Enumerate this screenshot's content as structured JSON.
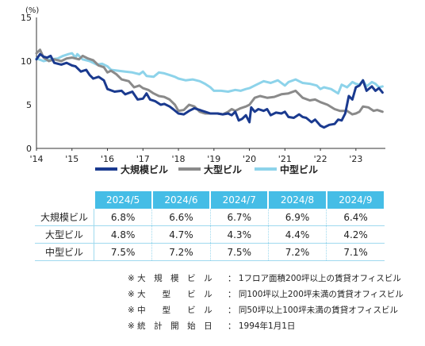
{
  "chart_data": {
    "type": "line",
    "unit": "(%)",
    "ylim": [
      0,
      15
    ],
    "yticks": [
      0,
      5,
      10,
      15
    ],
    "x_tick_labels": [
      "'14",
      "'15",
      "'16",
      "'17",
      "'18",
      "'19",
      "'20",
      "'21",
      "'22",
      "'23"
    ],
    "x_range": [
      2014.0,
      2023.83
    ],
    "grid": false,
    "legend_position": "bottom",
    "series": [
      {
        "name": "大規模ビル",
        "color": "#1a3a8f",
        "points": [
          [
            2014.0,
            10.2
          ],
          [
            2014.1,
            10.8
          ],
          [
            2014.2,
            10.5
          ],
          [
            2014.3,
            10.4
          ],
          [
            2014.4,
            10.6
          ],
          [
            2014.5,
            9.8
          ],
          [
            2014.7,
            9.6
          ],
          [
            2014.85,
            9.8
          ],
          [
            2015.0,
            9.5
          ],
          [
            2015.1,
            9.4
          ],
          [
            2015.25,
            8.8
          ],
          [
            2015.4,
            9.0
          ],
          [
            2015.5,
            8.4
          ],
          [
            2015.6,
            8.0
          ],
          [
            2015.75,
            8.2
          ],
          [
            2015.9,
            7.8
          ],
          [
            2016.0,
            6.8
          ],
          [
            2016.2,
            6.5
          ],
          [
            2016.4,
            6.6
          ],
          [
            2016.5,
            6.2
          ],
          [
            2016.7,
            6.5
          ],
          [
            2016.85,
            5.6
          ],
          [
            2017.0,
            5.7
          ],
          [
            2017.1,
            6.3
          ],
          [
            2017.2,
            5.6
          ],
          [
            2017.35,
            5.4
          ],
          [
            2017.5,
            5.0
          ],
          [
            2017.6,
            5.1
          ],
          [
            2017.75,
            4.8
          ],
          [
            2017.85,
            4.5
          ],
          [
            2018.0,
            4.0
          ],
          [
            2018.15,
            3.9
          ],
          [
            2018.3,
            4.3
          ],
          [
            2018.45,
            4.6
          ],
          [
            2018.6,
            4.4
          ],
          [
            2018.75,
            4.2
          ],
          [
            2018.9,
            4.0
          ],
          [
            2019.1,
            4.0
          ],
          [
            2019.25,
            3.9
          ],
          [
            2019.4,
            4.0
          ],
          [
            2019.5,
            3.8
          ],
          [
            2019.6,
            4.2
          ],
          [
            2019.7,
            3.2
          ],
          [
            2019.8,
            3.4
          ],
          [
            2019.9,
            3.8
          ],
          [
            2020.0,
            3.0
          ],
          [
            2020.05,
            4.7
          ],
          [
            2020.15,
            4.2
          ],
          [
            2020.25,
            4.5
          ],
          [
            2020.4,
            4.3
          ],
          [
            2020.5,
            4.5
          ],
          [
            2020.6,
            3.8
          ],
          [
            2020.75,
            4.1
          ],
          [
            2020.9,
            4.0
          ],
          [
            2021.0,
            4.2
          ],
          [
            2021.1,
            3.6
          ],
          [
            2021.25,
            3.5
          ],
          [
            2021.4,
            3.9
          ],
          [
            2021.5,
            3.6
          ],
          [
            2021.6,
            3.5
          ],
          [
            2021.75,
            3.0
          ],
          [
            2021.85,
            3.3
          ],
          [
            2022.0,
            2.6
          ],
          [
            2022.1,
            2.4
          ],
          [
            2022.25,
            2.7
          ],
          [
            2022.4,
            2.8
          ],
          [
            2022.5,
            3.3
          ],
          [
            2022.6,
            3.2
          ],
          [
            2022.7,
            4.0
          ],
          [
            2022.8,
            6.0
          ],
          [
            2022.9,
            5.6
          ],
          [
            2023.0,
            7.0
          ],
          [
            2023.1,
            7.2
          ],
          [
            2023.2,
            7.8
          ],
          [
            2023.3,
            6.6
          ],
          [
            2023.45,
            7.1
          ],
          [
            2023.55,
            6.6
          ],
          [
            2023.65,
            6.9
          ],
          [
            2023.75,
            6.4
          ]
        ]
      },
      {
        "name": "大型ビル",
        "color": "#8a8a8a",
        "points": [
          [
            2014.0,
            10.9
          ],
          [
            2014.1,
            11.3
          ],
          [
            2014.2,
            10.4
          ],
          [
            2014.35,
            10.0
          ],
          [
            2014.5,
            10.2
          ],
          [
            2014.7,
            10.0
          ],
          [
            2014.85,
            10.3
          ],
          [
            2015.0,
            10.4
          ],
          [
            2015.2,
            10.2
          ],
          [
            2015.3,
            10.6
          ],
          [
            2015.45,
            10.3
          ],
          [
            2015.6,
            10.1
          ],
          [
            2015.75,
            9.5
          ],
          [
            2015.9,
            9.3
          ],
          [
            2016.0,
            8.7
          ],
          [
            2016.1,
            8.9
          ],
          [
            2016.25,
            8.5
          ],
          [
            2016.4,
            7.9
          ],
          [
            2016.6,
            7.7
          ],
          [
            2016.75,
            7.0
          ],
          [
            2016.9,
            7.2
          ],
          [
            2017.0,
            6.9
          ],
          [
            2017.15,
            6.7
          ],
          [
            2017.3,
            6.3
          ],
          [
            2017.45,
            6.0
          ],
          [
            2017.6,
            5.9
          ],
          [
            2017.75,
            5.6
          ],
          [
            2017.9,
            5.0
          ],
          [
            2018.0,
            4.3
          ],
          [
            2018.15,
            4.4
          ],
          [
            2018.3,
            5.0
          ],
          [
            2018.45,
            4.8
          ],
          [
            2018.6,
            4.2
          ],
          [
            2018.75,
            4.0
          ],
          [
            2018.9,
            4.0
          ],
          [
            2019.1,
            4.0
          ],
          [
            2019.25,
            3.9
          ],
          [
            2019.4,
            4.2
          ],
          [
            2019.5,
            4.5
          ],
          [
            2019.6,
            4.3
          ],
          [
            2019.75,
            4.6
          ],
          [
            2019.9,
            4.8
          ],
          [
            2020.0,
            5.0
          ],
          [
            2020.15,
            5.8
          ],
          [
            2020.3,
            6.0
          ],
          [
            2020.5,
            5.8
          ],
          [
            2020.7,
            5.9
          ],
          [
            2020.9,
            6.2
          ],
          [
            2021.1,
            6.3
          ],
          [
            2021.3,
            6.6
          ],
          [
            2021.5,
            5.8
          ],
          [
            2021.7,
            5.5
          ],
          [
            2021.85,
            5.6
          ],
          [
            2022.0,
            5.3
          ],
          [
            2022.2,
            5.0
          ],
          [
            2022.4,
            4.5
          ],
          [
            2022.55,
            4.3
          ],
          [
            2022.75,
            4.3
          ],
          [
            2022.9,
            3.9
          ],
          [
            2023.0,
            4.0
          ],
          [
            2023.1,
            4.2
          ],
          [
            2023.2,
            4.8
          ],
          [
            2023.35,
            4.7
          ],
          [
            2023.5,
            4.3
          ],
          [
            2023.6,
            4.4
          ],
          [
            2023.75,
            4.2
          ]
        ]
      },
      {
        "name": "中型ビル",
        "color": "#8dd3ea",
        "points": [
          [
            2014.0,
            10.3
          ],
          [
            2014.2,
            10.0
          ],
          [
            2014.4,
            10.2
          ],
          [
            2014.6,
            10.3
          ],
          [
            2014.75,
            10.6
          ],
          [
            2014.9,
            10.8
          ],
          [
            2015.0,
            10.9
          ],
          [
            2015.1,
            10.4
          ],
          [
            2015.15,
            10.8
          ],
          [
            2015.3,
            10.2
          ],
          [
            2015.5,
            10.0
          ],
          [
            2015.7,
            9.6
          ],
          [
            2015.85,
            9.7
          ],
          [
            2016.0,
            9.4
          ],
          [
            2016.1,
            9.0
          ],
          [
            2016.3,
            8.9
          ],
          [
            2016.5,
            8.8
          ],
          [
            2016.7,
            8.7
          ],
          [
            2016.9,
            8.5
          ],
          [
            2017.0,
            8.8
          ],
          [
            2017.1,
            8.3
          ],
          [
            2017.3,
            8.2
          ],
          [
            2017.45,
            8.7
          ],
          [
            2017.6,
            8.6
          ],
          [
            2017.75,
            8.4
          ],
          [
            2017.9,
            8.2
          ],
          [
            2018.0,
            8.0
          ],
          [
            2018.2,
            7.8
          ],
          [
            2018.4,
            7.9
          ],
          [
            2018.6,
            7.7
          ],
          [
            2018.75,
            7.4
          ],
          [
            2018.9,
            7.0
          ],
          [
            2019.0,
            6.6
          ],
          [
            2019.2,
            6.6
          ],
          [
            2019.4,
            6.5
          ],
          [
            2019.6,
            6.7
          ],
          [
            2019.75,
            6.6
          ],
          [
            2019.9,
            6.8
          ],
          [
            2020.0,
            6.9
          ],
          [
            2020.2,
            7.3
          ],
          [
            2020.4,
            7.7
          ],
          [
            2020.6,
            7.5
          ],
          [
            2020.8,
            7.8
          ],
          [
            2021.0,
            7.2
          ],
          [
            2021.1,
            7.6
          ],
          [
            2021.3,
            7.9
          ],
          [
            2021.5,
            7.5
          ],
          [
            2021.7,
            7.4
          ],
          [
            2021.9,
            7.2
          ],
          [
            2022.0,
            6.8
          ],
          [
            2022.1,
            7.0
          ],
          [
            2022.3,
            6.8
          ],
          [
            2022.5,
            6.3
          ],
          [
            2022.6,
            7.3
          ],
          [
            2022.75,
            7.0
          ],
          [
            2022.9,
            7.6
          ],
          [
            2023.0,
            7.4
          ],
          [
            2023.1,
            7.3
          ],
          [
            2023.2,
            7.8
          ],
          [
            2023.3,
            7.1
          ],
          [
            2023.45,
            7.6
          ],
          [
            2023.55,
            7.4
          ],
          [
            2023.65,
            7.0
          ],
          [
            2023.75,
            7.1
          ]
        ]
      }
    ]
  },
  "table": {
    "columns": [
      "2024/5",
      "2024/6",
      "2024/7",
      "2024/8",
      "2024/9"
    ],
    "rows": [
      {
        "label": "大規模ビル",
        "values": [
          "6.8%",
          "6.6%",
          "6.7%",
          "6.9%",
          "6.4%"
        ]
      },
      {
        "label": "大型ビル",
        "values": [
          "4.8%",
          "4.7%",
          "4.3%",
          "4.4%",
          "4.2%"
        ]
      },
      {
        "label": "中型ビル",
        "values": [
          "7.5%",
          "7.2%",
          "7.5%",
          "7.2%",
          "7.1%"
        ]
      }
    ]
  },
  "notes": [
    {
      "label": "※ 大　規　模　ビ　ル",
      "text": "： 1フロア面積200坪以上の賃貸オフィスビル"
    },
    {
      "label": "※ 大　　型　　ビ　ル",
      "text": "： 同100坪以上200坪未満の賃貸オフィスビル"
    },
    {
      "label": "※ 中　　型　　ビ　ル",
      "text": "： 同50坪以上100坪未満の賃貸オフィスビル"
    },
    {
      "label": "※ 統　計　開　始　日",
      "text": "： 1994年1月1日"
    }
  ]
}
